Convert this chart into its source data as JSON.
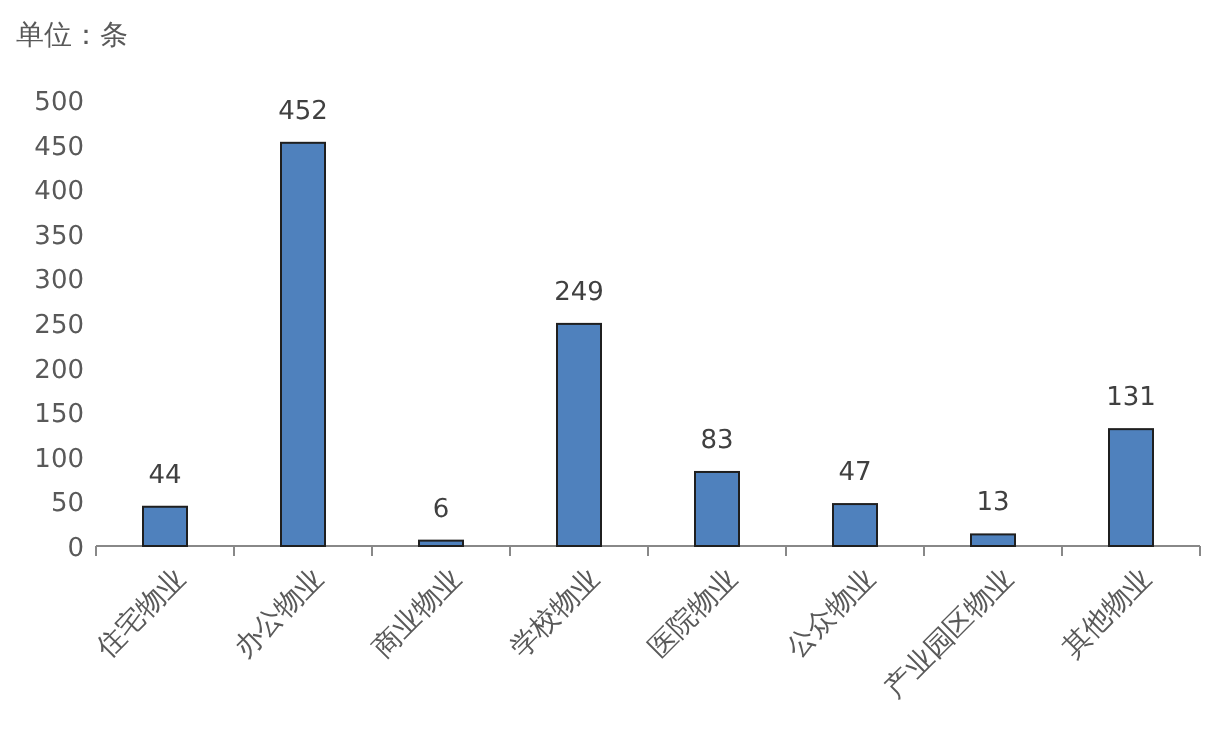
{
  "chart_data": {
    "type": "bar",
    "ylabel": "单位：条",
    "categories": [
      "住宅物业",
      "办公物业",
      "商业物业",
      "学校物业",
      "医院物业",
      "公众物业",
      "产业园区物业",
      "其他物业"
    ],
    "values": [
      44,
      452,
      6,
      249,
      83,
      47,
      13,
      131
    ],
    "color": "#4f81bd",
    "ylim": [
      0,
      500
    ],
    "yticks": [
      0,
      50,
      100,
      150,
      200,
      250,
      300,
      350,
      400,
      450,
      500
    ],
    "data_labels": true
  }
}
